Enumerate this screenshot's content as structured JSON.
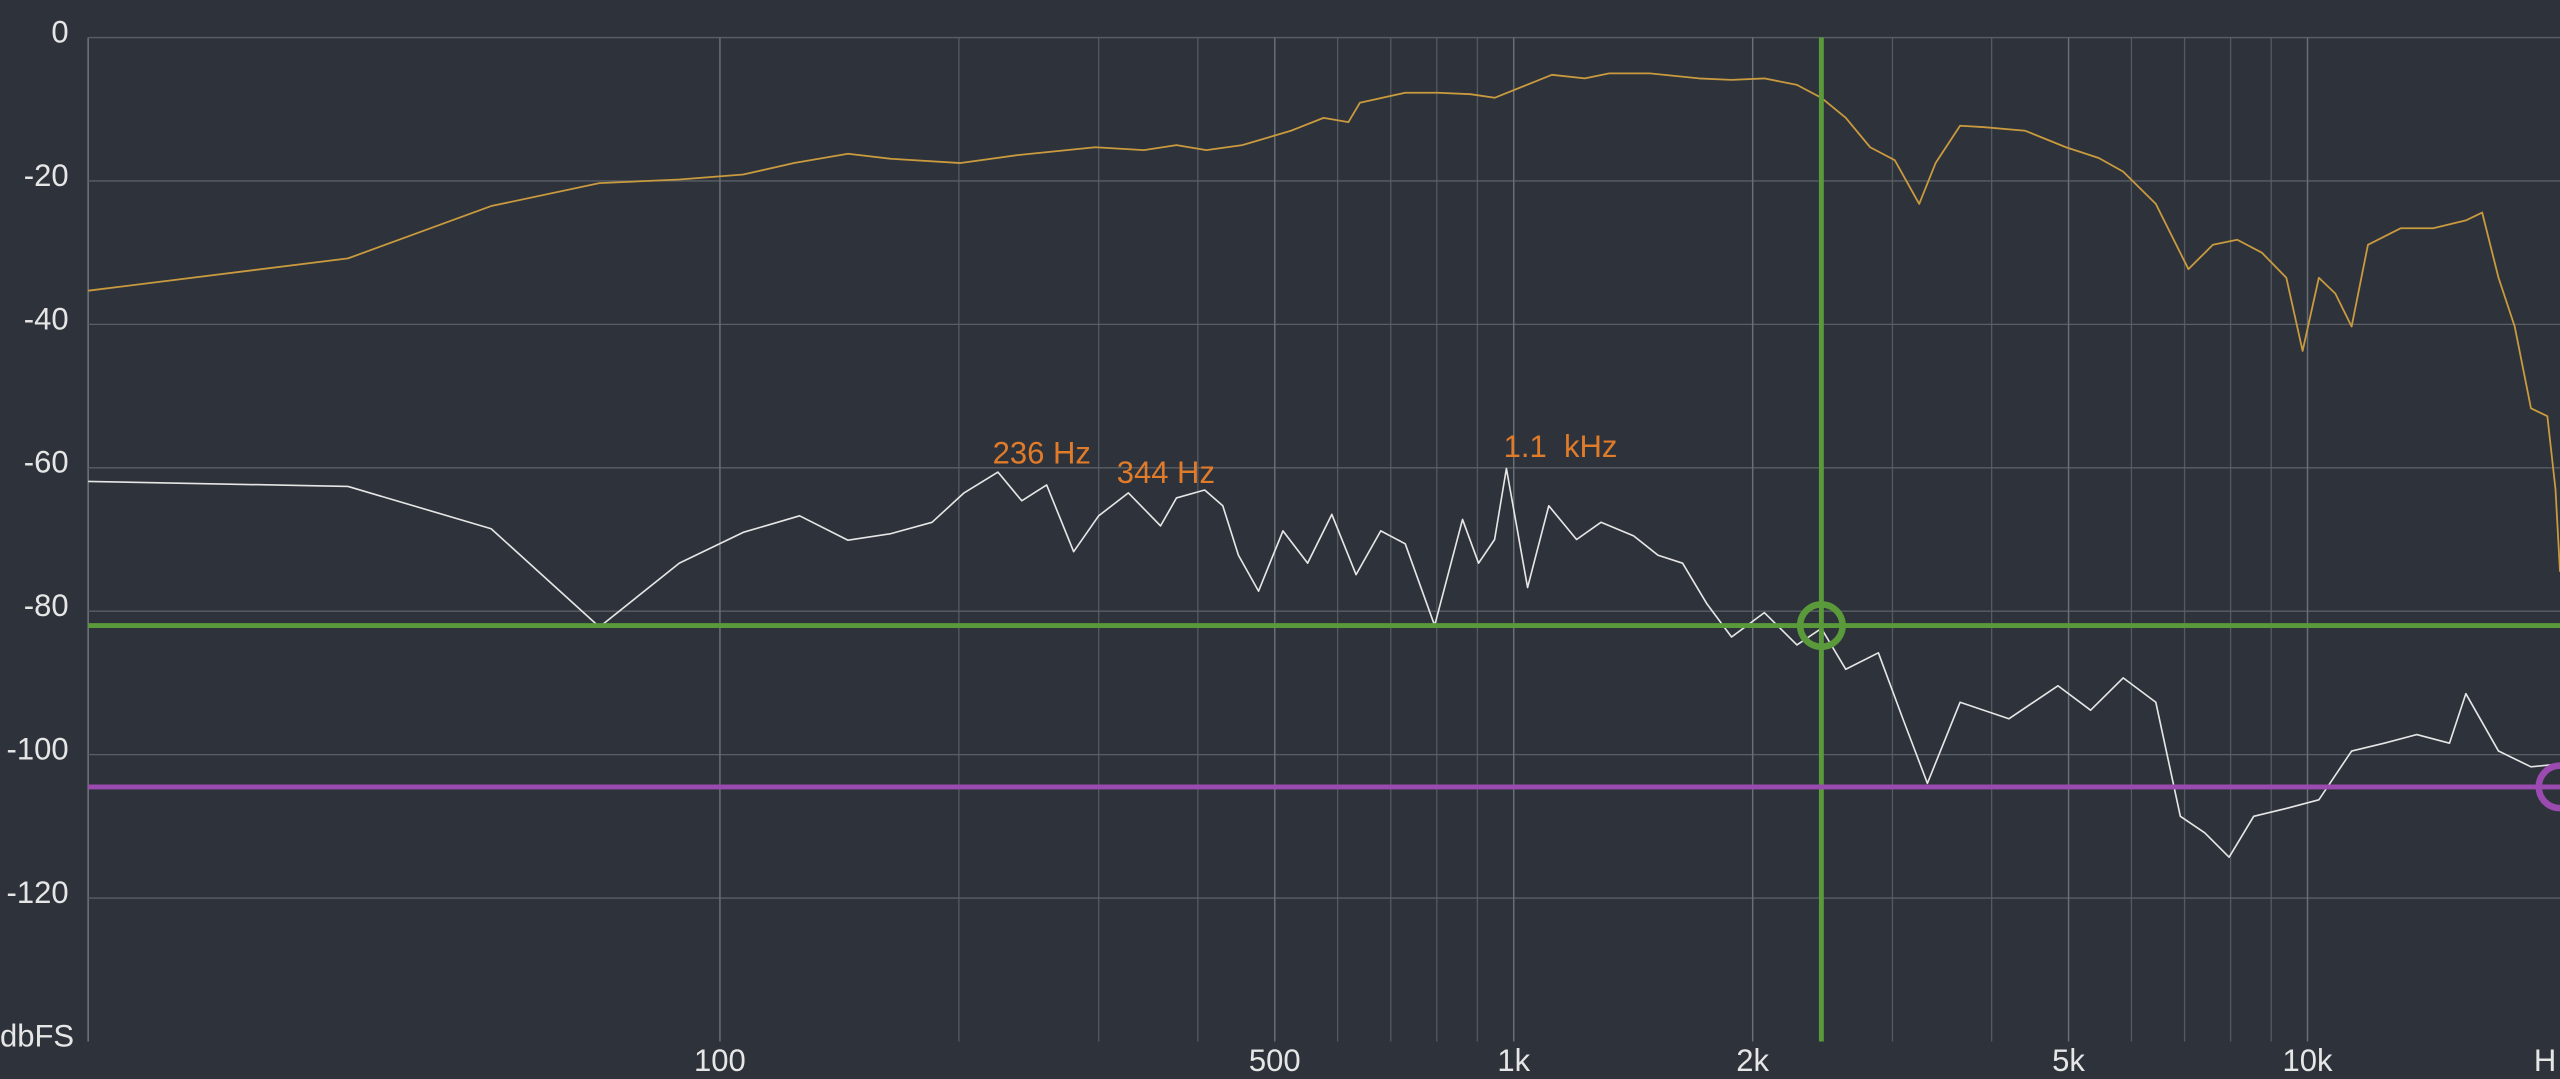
{
  "chart_data": {
    "type": "line",
    "log_x": true,
    "grid": true,
    "background": "#2e333b",
    "x_label": "H",
    "y_label": "dbFS",
    "xlim": [
      16,
      20800
    ],
    "ylim": [
      -140,
      0
    ],
    "xticks": [
      100,
      500,
      {
        "value": 1000,
        "label": "1k"
      },
      {
        "value": 2000,
        "label": "2k"
      },
      {
        "value": 5000,
        "label": "5k"
      },
      {
        "value": 10000,
        "label": "10k"
      }
    ],
    "xminor": [
      200,
      300,
      400,
      600,
      700,
      800,
      900,
      3000,
      4000,
      6000,
      7000,
      8000,
      9000
    ],
    "yticks": [
      0,
      -20,
      -40,
      -60,
      -80,
      -100,
      -120
    ],
    "series": [
      {
        "color": "#c99a3e",
        "x": [
          16,
          34,
          51.5,
          70.5,
          88.9,
          107,
          124,
          145,
          164,
          201,
          237,
          297,
          342,
          376,
          410,
          455,
          524,
          576,
          619,
          640,
          730,
          802,
          882,
          946,
          1066,
          1117,
          1229,
          1319,
          1485,
          1712,
          1881,
          2069,
          2274,
          2441,
          2620,
          2812,
          3020,
          3242,
          3400,
          3650,
          3917,
          4410,
          4962,
          5458,
          5858,
          6440,
          7079,
          7600,
          8156,
          8760,
          9404,
          9858,
          10334,
          10839,
          11364,
          11916,
          13098,
          14398,
          15830,
          16596,
          17402,
          18239,
          19120,
          20050,
          20530,
          20800
        ],
        "values": [
          -35.3,
          -30.8,
          -23.5,
          -20.3,
          -19.8,
          -19.1,
          -17.5,
          -16.2,
          -16.9,
          -17.5,
          -16.4,
          -15.3,
          -15.7,
          -15,
          -15.7,
          -15,
          -13,
          -11.2,
          -11.8,
          -9.1,
          -7.7,
          -7.7,
          -7.9,
          -8.4,
          -6.1,
          -5.2,
          -5.7,
          -5,
          -5,
          -5.7,
          -5.9,
          -5.7,
          -6.6,
          -8.4,
          -11.2,
          -15.3,
          -17.1,
          -23.2,
          -17.5,
          -12.3,
          -12.5,
          -13,
          -15.3,
          -16.8,
          -18.7,
          -23.2,
          -32.3,
          -28.9,
          -28.2,
          -30,
          -33.5,
          -43.7,
          -33.5,
          -35.7,
          -40.3,
          -28.9,
          -26.6,
          -26.6,
          -25.5,
          -24.4,
          -33.5,
          -40.3,
          -51.7,
          -52.8,
          -63,
          -74.5
        ]
      },
      {
        "color": "#e6e6e6",
        "x": [
          16,
          34,
          51.5,
          70.5,
          88.9,
          107,
          126,
          145,
          164,
          185,
          203,
          224,
          240,
          258,
          279,
          300,
          327,
          359,
          376,
          408,
          430,
          450,
          477,
          512,
          550,
          590,
          633,
          680,
          730,
          795,
          862,
          903,
          946,
          979,
          1041,
          1107,
          1200,
          1288,
          1416,
          1520,
          1632,
          1752,
          1881,
          2069,
          2274,
          2441,
          2620,
          2880,
          3092,
          3320,
          3650,
          4205,
          4848,
          5330,
          5858,
          6440,
          6915,
          7422,
          7966,
          8555,
          9404,
          10334,
          11364,
          12492,
          13730,
          15096,
          15830,
          17402,
          19120,
          20800
        ],
        "values": [
          -61.9,
          -62.6,
          -68.5,
          -82.2,
          -73.3,
          -69,
          -66.7,
          -70.1,
          -69.2,
          -67.6,
          -63.5,
          -60.6,
          -64.6,
          -62.4,
          -71.7,
          -66.7,
          -63.5,
          -68.1,
          -64.2,
          -63.1,
          -65.3,
          -72.2,
          -77.2,
          -68.8,
          -73.3,
          -66.5,
          -74.9,
          -68.8,
          -70.6,
          -82,
          -67.2,
          -73.3,
          -70,
          -60.1,
          -76.7,
          -65.3,
          -70,
          -67.6,
          -69.5,
          -72.2,
          -73.3,
          -79,
          -83.6,
          -80.2,
          -84.7,
          -82.4,
          -88.1,
          -85.8,
          -95,
          -104,
          -92.7,
          -95,
          -90.4,
          -93.8,
          -89.3,
          -92.7,
          -108.6,
          -110.9,
          -114.3,
          -108.6,
          -107.5,
          -106.3,
          -99.5,
          -98.4,
          -97.2,
          -98.4,
          -91.5,
          -99.5,
          -101.7,
          -101.3
        ]
      }
    ],
    "cursors": [
      {
        "orientation": "h",
        "value": -82,
        "color": "#5a9a3a"
      },
      {
        "orientation": "v",
        "value": 2441,
        "color": "#5a9a3a"
      },
      {
        "orientation": "h",
        "value": -104.5,
        "color": "#9b4bb0"
      }
    ],
    "markers": [
      {
        "x": 2441,
        "y": -82,
        "color": "#5a9a3a"
      },
      {
        "x": 20800,
        "y": -104.5,
        "color": "#9b4bb0"
      }
    ],
    "annotations": [
      "236 Hz",
      "344 Hz",
      "1.1  kHz"
    ]
  }
}
